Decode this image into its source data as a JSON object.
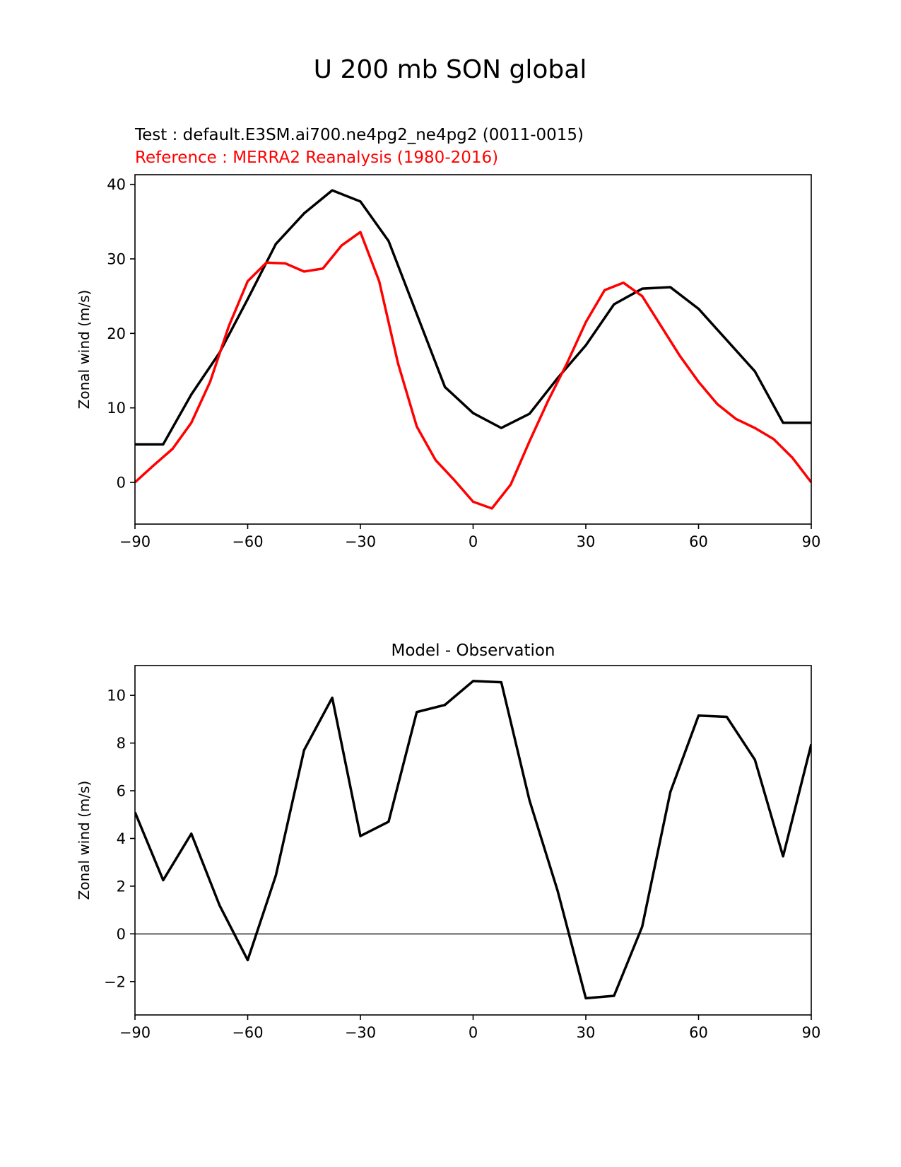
{
  "suptitle": "U 200 mb SON global",
  "test_label": "Test : default.E3SM.ai700.ne4pg2_ne4pg2 (0011-0015)",
  "ref_label": "Reference : MERRA2 Reanalysis (1980-2016)",
  "colors": {
    "test": "#000000",
    "reference": "#ff0000",
    "zero_line": "#808080"
  },
  "chart_data": [
    {
      "type": "line",
      "title": "",
      "xlabel": "",
      "ylabel": "Zonal wind (m/s)",
      "xlim": [
        -90,
        90
      ],
      "ylim": [
        -5.6,
        41.3
      ],
      "xticks": [
        -90,
        -60,
        -30,
        0,
        30,
        60,
        90
      ],
      "yticks": [
        0,
        10,
        20,
        30,
        40
      ],
      "grid": false,
      "series": [
        {
          "name": "Test",
          "color": "#000000",
          "x": [
            -90,
            -82.5,
            -75,
            -67.5,
            -60,
            -52.5,
            -45,
            -37.5,
            -30,
            -22.5,
            -15,
            -7.5,
            0,
            7.5,
            15,
            22.5,
            30,
            37.5,
            45,
            52.5,
            60,
            67.5,
            75,
            82.5,
            90
          ],
          "y": [
            5.1,
            5.1,
            11.8,
            17.4,
            24.6,
            32.0,
            36.1,
            39.2,
            37.7,
            32.4,
            22.6,
            12.8,
            9.3,
            7.3,
            9.2,
            14.0,
            18.4,
            23.9,
            26.0,
            26.2,
            23.3,
            19.1,
            14.9,
            8.0,
            8.0
          ]
        },
        {
          "name": "Reference",
          "color": "#ff0000",
          "x": [
            -90,
            -85,
            -80,
            -75,
            -70,
            -65,
            -60,
            -55,
            -50,
            -45,
            -40,
            -35,
            -30,
            -25,
            -20,
            -15,
            -10,
            -5,
            0,
            5,
            10,
            15,
            20,
            25,
            30,
            35,
            40,
            45,
            50,
            55,
            60,
            65,
            70,
            75,
            80,
            85,
            90
          ],
          "y": [
            0.0,
            2.3,
            4.5,
            8.0,
            13.5,
            21.0,
            27.0,
            29.5,
            29.4,
            28.3,
            28.7,
            31.8,
            33.6,
            27.0,
            16.0,
            7.5,
            3.0,
            0.3,
            -2.6,
            -3.5,
            -0.3,
            5.5,
            11.0,
            16.0,
            21.5,
            25.8,
            26.8,
            25.0,
            21.0,
            17.0,
            13.5,
            10.5,
            8.5,
            7.3,
            5.8,
            3.3,
            0.0
          ]
        }
      ]
    },
    {
      "type": "line",
      "title": "Model - Observation",
      "xlabel": "",
      "ylabel": "Zonal wind (m/s)",
      "xlim": [
        -90,
        90
      ],
      "ylim": [
        -3.4,
        11.25
      ],
      "xticks": [
        -90,
        -60,
        -30,
        0,
        30,
        60,
        90
      ],
      "yticks": [
        -2,
        0,
        2,
        4,
        6,
        8,
        10
      ],
      "grid": false,
      "zero_line": true,
      "series": [
        {
          "name": "Model - Observation",
          "color": "#000000",
          "x": [
            -90,
            -82.5,
            -75,
            -67.5,
            -60,
            -52.5,
            -45,
            -37.5,
            -30,
            -22.5,
            -15,
            -7.5,
            0,
            7.5,
            15,
            22.5,
            30,
            37.5,
            45,
            52.5,
            60,
            67.5,
            75,
            82.5,
            90
          ],
          "y": [
            5.1,
            2.25,
            4.2,
            1.2,
            -1.1,
            2.45,
            7.7,
            9.9,
            4.1,
            4.7,
            9.3,
            9.6,
            10.6,
            10.55,
            5.6,
            1.8,
            -2.7,
            -2.6,
            0.3,
            5.95,
            9.15,
            9.1,
            7.3,
            3.25,
            7.95
          ]
        }
      ]
    }
  ]
}
